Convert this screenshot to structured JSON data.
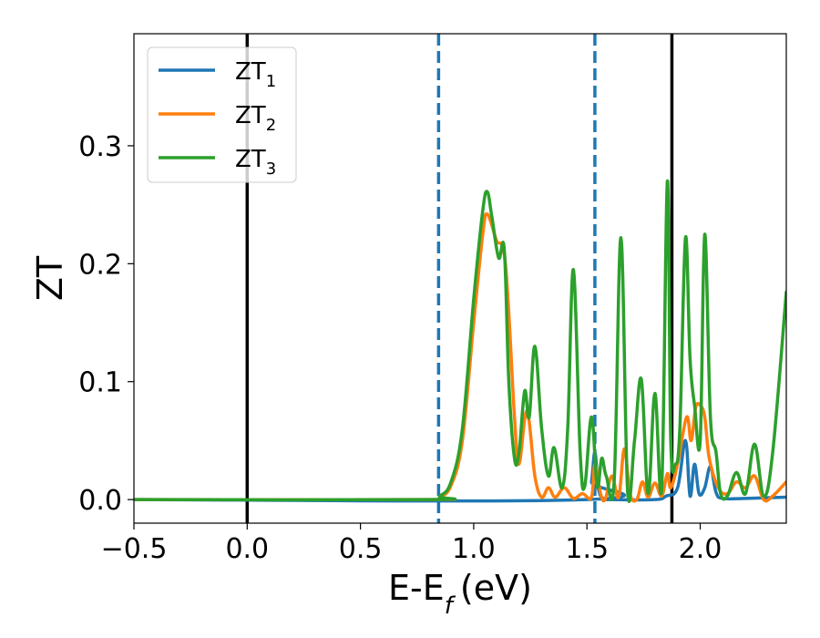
{
  "chart_data": {
    "type": "line",
    "xlabel": "E-E",
    "xlabel_sub": "f",
    "xlabel_unit": "(eV)",
    "ylabel": "ZT",
    "xlim": [
      -0.5,
      2.38
    ],
    "ylim": [
      -0.02,
      0.395
    ],
    "xticks": [
      -0.5,
      0.0,
      0.5,
      1.0,
      1.5,
      2.0
    ],
    "xtick_labels": [
      "−0.5",
      "0.0",
      "0.5",
      "1.0",
      "1.5",
      "2.0"
    ],
    "yticks": [
      0.0,
      0.1,
      0.2,
      0.3
    ],
    "ytick_labels": [
      "0.0",
      "0.1",
      "0.2",
      "0.3"
    ],
    "grid": false,
    "legend_position": "top-left",
    "vertical_lines": [
      {
        "x": 0.0,
        "style": "solid",
        "color": "#000000"
      },
      {
        "x": 0.845,
        "style": "dashed",
        "color": "#1f77b4"
      },
      {
        "x": 1.535,
        "style": "dashed",
        "color": "#1f77b4"
      },
      {
        "x": 1.875,
        "style": "solid",
        "color": "#000000"
      }
    ],
    "series": [
      {
        "name": "ZT",
        "name_sub": "1",
        "color": "#1f77b4",
        "x": [
          -0.5,
          1.5,
          1.52,
          1.535,
          1.55,
          1.57,
          1.6,
          1.8,
          1.85,
          1.9,
          1.935,
          1.955,
          1.975,
          1.995,
          2.02,
          2.045,
          2.07,
          2.1,
          2.2,
          2.38
        ],
        "y": [
          0.0,
          0.0,
          0.015,
          0.04,
          0.01,
          0.001,
          0.0,
          0.0,
          0.003,
          0.01,
          0.05,
          0.003,
          0.03,
          0.005,
          0.01,
          0.028,
          0.006,
          0.001,
          0.001,
          0.002
        ]
      },
      {
        "name": "ZT",
        "name_sub": "2",
        "color": "#ff7f0e",
        "x": [
          -0.5,
          0.8,
          0.85,
          0.9,
          0.95,
          1.0,
          1.04,
          1.06,
          1.1,
          1.14,
          1.18,
          1.2,
          1.235,
          1.27,
          1.3,
          1.33,
          1.36,
          1.4,
          1.44,
          1.48,
          1.52,
          1.535,
          1.56,
          1.58,
          1.61,
          1.64,
          1.665,
          1.69,
          1.72,
          1.745,
          1.77,
          1.8,
          1.83,
          1.855,
          1.87,
          1.9,
          1.94,
          1.96,
          1.98,
          2.0,
          2.02,
          2.04,
          2.08,
          2.12,
          2.16,
          2.2,
          2.24,
          2.28,
          2.32,
          2.38
        ],
        "y": [
          0.0,
          0.0,
          0.002,
          0.012,
          0.05,
          0.15,
          0.225,
          0.242,
          0.22,
          0.2,
          0.07,
          0.03,
          0.075,
          0.02,
          0.002,
          0.01,
          0.002,
          0.01,
          0.001,
          0.005,
          0.002,
          0.03,
          0.005,
          0.0,
          0.02,
          0.002,
          0.043,
          0.005,
          0.0,
          0.015,
          0.002,
          0.014,
          0.003,
          0.022,
          0.01,
          0.03,
          0.07,
          0.05,
          0.078,
          0.08,
          0.07,
          0.035,
          0.01,
          0.005,
          0.015,
          0.01,
          0.02,
          0.0,
          0.003,
          0.015
        ]
      },
      {
        "name": "ZT",
        "name_sub": "3",
        "color": "#2ca02c",
        "x": [
          -0.5,
          0.8,
          0.85,
          0.9,
          0.95,
          1.0,
          1.04,
          1.06,
          1.08,
          1.11,
          1.135,
          1.155,
          1.18,
          1.2,
          1.225,
          1.245,
          1.27,
          1.3,
          1.33,
          1.355,
          1.39,
          1.415,
          1.44,
          1.47,
          1.49,
          1.52,
          1.545,
          1.565,
          1.585,
          1.62,
          1.65,
          1.68,
          1.71,
          1.74,
          1.77,
          1.8,
          1.83,
          1.855,
          1.87,
          1.89,
          1.91,
          1.935,
          1.955,
          1.975,
          2.0,
          2.02,
          2.045,
          2.07,
          2.09,
          2.12,
          2.16,
          2.2,
          2.24,
          2.28,
          2.32,
          2.38
        ],
        "y": [
          0.0,
          0.0,
          0.003,
          0.015,
          0.06,
          0.17,
          0.245,
          0.261,
          0.24,
          0.205,
          0.212,
          0.1,
          0.035,
          0.04,
          0.092,
          0.07,
          0.13,
          0.06,
          0.02,
          0.044,
          0.01,
          0.06,
          0.195,
          0.04,
          0.011,
          0.07,
          0.011,
          0.035,
          0.02,
          0.015,
          0.222,
          0.005,
          0.05,
          0.102,
          0.005,
          0.09,
          0.01,
          0.27,
          0.05,
          0.03,
          0.06,
          0.222,
          0.12,
          0.08,
          0.05,
          0.225,
          0.07,
          0.04,
          0.005,
          0.003,
          0.023,
          0.005,
          0.047,
          0.003,
          0.04,
          0.176
        ]
      }
    ]
  }
}
